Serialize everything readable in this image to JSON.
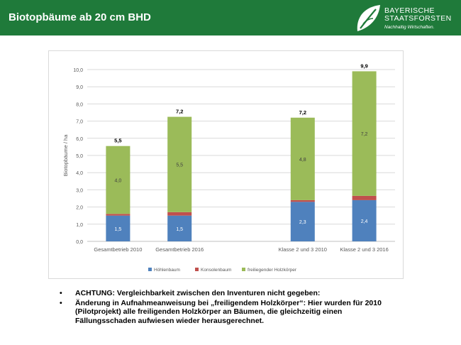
{
  "header": {
    "title": "Biotopbäume ab 20 cm BHD",
    "logo_line1": "BAYERISCHE",
    "logo_line2": "STAATSFORSTEN",
    "logo_slogan": "Nachhaltig Wirtschaften."
  },
  "colors": {
    "header_bg": "#1f7a3a",
    "hoehlenbaum": "#4f81bd",
    "konsolenbaum": "#c0504d",
    "holzkoerper": "#9bbb59"
  },
  "chart_data": {
    "type": "bar",
    "stacked": true,
    "ylabel": "Biotopbäume / ha",
    "xlabel": "",
    "ylim": [
      0,
      10
    ],
    "ytick_step": 1,
    "ytick_labels": [
      "0,0",
      "1,0",
      "2,0",
      "3,0",
      "4,0",
      "5,0",
      "6,0",
      "7,0",
      "8,0",
      "9,0",
      "10,0"
    ],
    "grid": true,
    "legend": "bottom",
    "categories": [
      "Gesamtbetrieb 2010",
      "Gesamtbetrieb 2016",
      "",
      "Klasse 2 und 3 2010",
      "Klasse 2 und 3 2016"
    ],
    "series": [
      {
        "name": "Höhlenbaum",
        "color": "#4f81bd",
        "values": [
          1.5,
          1.5,
          null,
          2.3,
          2.4
        ],
        "labels": [
          "1,5",
          "1,5",
          "",
          "2,3",
          "2,4"
        ]
      },
      {
        "name": "Konsolenbaum",
        "color": "#c0504d",
        "values": [
          0.1,
          0.2,
          null,
          0.1,
          0.25
        ],
        "labels": [
          "",
          "",
          "",
          "",
          ""
        ]
      },
      {
        "name": "freiliegender Holzkörper",
        "color": "#9bbb59",
        "values": [
          3.95,
          5.55,
          null,
          4.8,
          7.25
        ],
        "labels": [
          "4,0",
          "5,5",
          "",
          "4,8",
          "7,2"
        ]
      }
    ],
    "totals": [
      "5,5",
      "7,2",
      "",
      "7,2",
      "9,9"
    ],
    "total_values": [
      5.55,
      7.25,
      null,
      7.2,
      9.9
    ]
  },
  "notes": [
    "ACHTUNG: Vergleichbarkeit zwischen den Inventuren nicht gegeben:",
    "Änderung in Aufnahmeanweisung bei „freiligendem Holzkörper“: Hier wurden für 2010 (Pilotprojekt) alle freiligenden Holzkörper an Bäumen, die gleichzeitig einen Fällungsschaden aufwiesen wieder herausgerechnet."
  ],
  "bullet_symbol": "•"
}
